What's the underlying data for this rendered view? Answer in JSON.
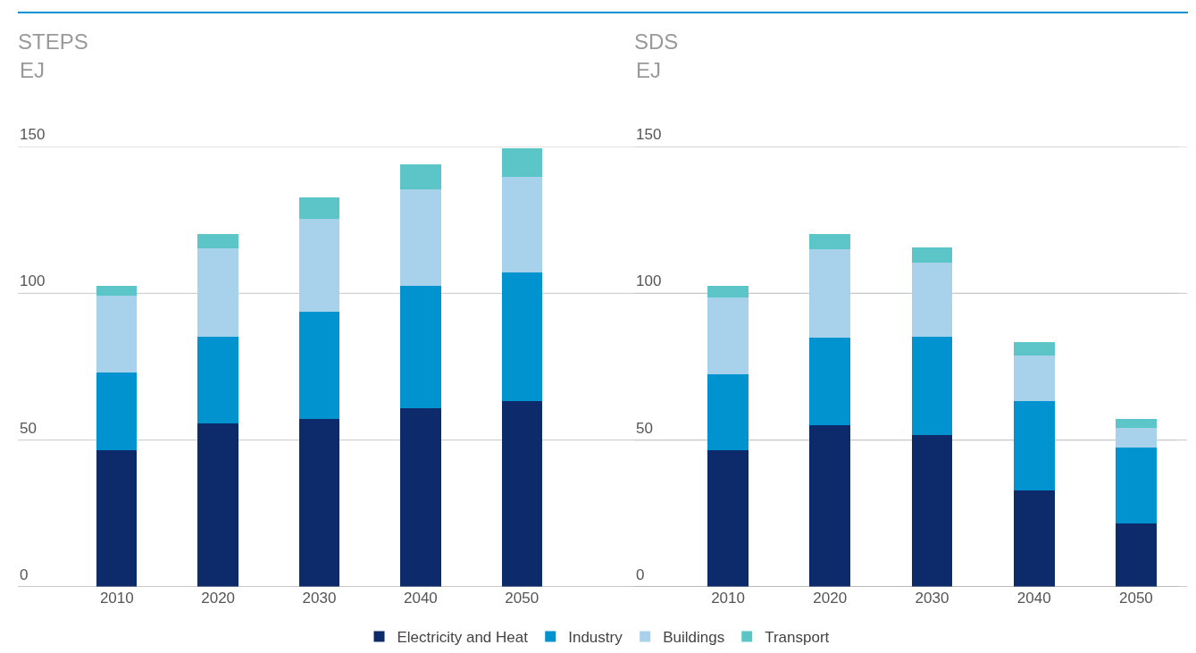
{
  "chart_data": [
    {
      "type": "bar",
      "title": "STEPS",
      "subtitle": "EJ",
      "categories": [
        "2010",
        "2020",
        "2030",
        "2040",
        "2050"
      ],
      "stacked": true,
      "series": [
        {
          "name": "Electricity and Heat",
          "color": "#0d2b6b",
          "values": [
            46.5,
            55.7,
            57.2,
            60.8,
            63.3
          ]
        },
        {
          "name": "Industry",
          "color": "#0093d0",
          "values": [
            26.5,
            29.5,
            36.5,
            41.7,
            43.8
          ]
        },
        {
          "name": "Buildings",
          "color": "#a8d2eb",
          "values": [
            26.2,
            30.1,
            31.6,
            32.9,
            32.5
          ]
        },
        {
          "name": "Transport",
          "color": "#5bc5c7",
          "values": [
            3.3,
            4.9,
            7.3,
            8.5,
            9.8
          ]
        }
      ],
      "ylim": [
        0,
        150
      ],
      "yticks": [
        0,
        50,
        100,
        150
      ],
      "grid": "y",
      "legend": "bottom"
    },
    {
      "type": "bar",
      "title": "SDS",
      "subtitle": "EJ",
      "categories": [
        "2010",
        "2020",
        "2030",
        "2040",
        "2050"
      ],
      "stacked": true,
      "series": [
        {
          "color": "#0d2b6b",
          "values": [
            46.6,
            55.2,
            51.7,
            32.9,
            21.6
          ]
        },
        {
          "color": "#0093d0",
          "values": [
            25.9,
            29.6,
            33.6,
            30.5,
            25.9
          ]
        },
        {
          "color": "#a8d2eb",
          "values": [
            26.2,
            30.1,
            25.0,
            15.5,
            6.8
          ]
        },
        {
          "color": "#5bc5c7",
          "values": [
            3.9,
            5.2,
            5.2,
            4.4,
            2.9
          ]
        }
      ],
      "ylim": [
        0,
        150
      ],
      "yticks": [
        0,
        50,
        100,
        150
      ],
      "grid": "y"
    }
  ]
}
